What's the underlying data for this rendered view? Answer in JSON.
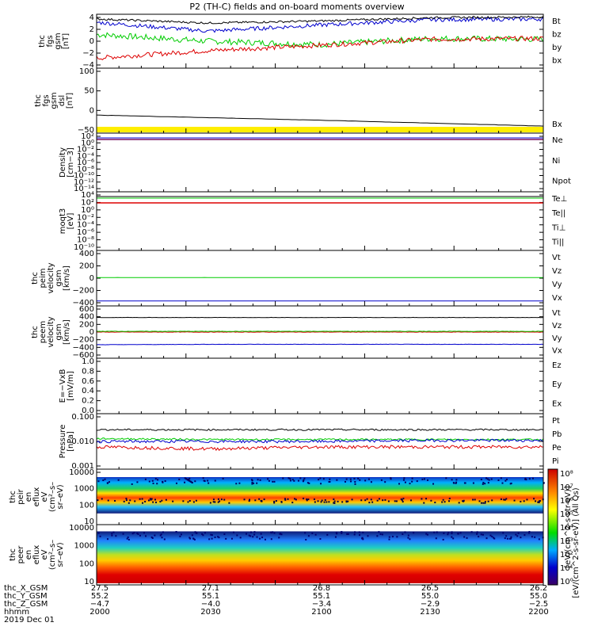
{
  "title": "P2 (TH-C) fields and on-board moments overview",
  "colors": {
    "black": "#000000",
    "red": "#dd0000",
    "green": "#00cc00",
    "blue": "#0000cc",
    "yellow": "#ffee00",
    "purple": "#7a1060"
  },
  "panels": [
    {
      "id": "fgs",
      "ylabel": [
        "thc",
        "fgs",
        "gsm",
        "[nT]"
      ],
      "yticks": [
        "4",
        "2",
        "0",
        "−2",
        "−4"
      ],
      "yrange": [
        -4,
        4
      ],
      "legend": [
        {
          "t": "Bt",
          "c": "black"
        },
        {
          "t": "bz",
          "c": "red"
        },
        {
          "t": "by",
          "c": "green"
        },
        {
          "t": "bx",
          "c": "blue"
        }
      ]
    },
    {
      "id": "fgs_dsl",
      "ylabel": [
        "thc",
        "fgs",
        "gsm",
        "dsl",
        "[nT]"
      ],
      "yticks": [
        "100",
        "50",
        "0",
        "−50"
      ],
      "yrange": [
        -60,
        100
      ],
      "legend": [
        {
          "t": "Bx",
          "c": "black"
        }
      ]
    },
    {
      "id": "density",
      "ylabel": [
        "Density",
        "[cm−3]"
      ],
      "yticks": [
        "10²",
        "10⁰",
        "10⁻²",
        "10⁻⁴",
        "10⁻⁶",
        "10⁻⁸",
        "10⁻¹⁰",
        "10⁻¹²",
        "10⁻¹⁴"
      ],
      "legend": [
        {
          "t": "Ne",
          "c": "red"
        },
        {
          "t": "Ni",
          "c": "black"
        },
        {
          "t": "Npot",
          "c": "blue"
        }
      ]
    },
    {
      "id": "temp",
      "ylabel": [
        "moqt3",
        "[eV]"
      ],
      "yticks": [
        "10⁴",
        "10²",
        "10⁰",
        "10⁻²",
        "10⁻⁴",
        "10⁻⁶",
        "10⁻⁸",
        "10⁻¹⁰"
      ],
      "legend": [
        {
          "t": "Te⊥",
          "c": "red"
        },
        {
          "t": "Te||",
          "c": "black"
        },
        {
          "t": "Ti⊥",
          "c": "blue"
        },
        {
          "t": "Ti||",
          "c": "green"
        }
      ]
    },
    {
      "id": "peim",
      "ylabel": [
        "thc",
        "peim",
        "velocity",
        "gsm",
        "[km/s]"
      ],
      "yticks": [
        "400",
        "200",
        "0",
        "−200",
        "−400"
      ],
      "yrange": [
        -400,
        400
      ],
      "legend": [
        {
          "t": "Vt",
          "c": "black"
        },
        {
          "t": "Vz",
          "c": "red"
        },
        {
          "t": "Vy",
          "c": "green"
        },
        {
          "t": "Vx",
          "c": "blue"
        }
      ]
    },
    {
      "id": "peem",
      "ylabel": [
        "thc",
        "peem",
        "velocity",
        "gsm",
        "[km/s]"
      ],
      "yticks": [
        "600",
        "400",
        "200",
        "0",
        "−200",
        "−400",
        "−600"
      ],
      "yrange": [
        -600,
        600
      ],
      "legend": [
        {
          "t": "Vt",
          "c": "black"
        },
        {
          "t": "Vz",
          "c": "red"
        },
        {
          "t": "Vy",
          "c": "green"
        },
        {
          "t": "Vx",
          "c": "blue"
        }
      ]
    },
    {
      "id": "efield",
      "ylabel": [
        "E=−VxB",
        "[mV/m]"
      ],
      "yticks": [
        "1.0",
        "0.8",
        "0.6",
        "0.4",
        "0.2",
        "0.0"
      ],
      "yrange": [
        0,
        1
      ],
      "legend": [
        {
          "t": "Ez",
          "c": "red"
        },
        {
          "t": "Ey",
          "c": "green"
        },
        {
          "t": "Ex",
          "c": "blue"
        }
      ]
    },
    {
      "id": "pressure",
      "ylabel": [
        "Pressure",
        "[nPa]"
      ],
      "yticks": [
        "0.100",
        "0.010",
        "0.001"
      ],
      "legend": [
        {
          "t": "Pt",
          "c": "black"
        },
        {
          "t": "Pb",
          "c": "red"
        },
        {
          "t": "Pe",
          "c": "green"
        },
        {
          "t": "Pi",
          "c": "blue"
        }
      ]
    },
    {
      "id": "peir",
      "ylabel": [
        "thc",
        "peir",
        "en",
        "eflux",
        "eV",
        "(cm²–s–",
        "sr–eV)"
      ],
      "yticks": [
        "10000",
        "1000",
        "100",
        "10"
      ]
    },
    {
      "id": "peer",
      "ylabel": [
        "thc",
        "peer",
        "en",
        "eflux",
        "eV",
        "(cm²–s–",
        "sr–eV)"
      ],
      "yticks": [
        "10000",
        "1000",
        "100",
        "10"
      ]
    }
  ],
  "colorbar": {
    "ticks": [
      "10⁸",
      "10⁷",
      "10⁶",
      "10⁵",
      "10⁴",
      "10³",
      "10²",
      "10¹",
      "10⁰"
    ],
    "label": "[eV/(cm^2-s-sr-eV)] (All Qs)",
    "label_overlay": "[eV/(cm^2-s-str-eV)]"
  },
  "footer": {
    "rows": [
      {
        "label": "thc_X_GSM",
        "values": [
          "27.5",
          "27.1",
          "26.8",
          "26.5",
          "26.2"
        ]
      },
      {
        "label": "thc_Y_GSM",
        "values": [
          "55.2",
          "55.1",
          "55.1",
          "55.0",
          "55.0"
        ]
      },
      {
        "label": "thc_Z_GSM",
        "values": [
          "−4.7",
          "−4.0",
          "−3.4",
          "−2.9",
          "−2.5"
        ]
      },
      {
        "label": "hhmm",
        "values": [
          "2000",
          "2030",
          "2100",
          "2130",
          "2200"
        ]
      }
    ],
    "date": "2019 Dec 01"
  },
  "chart_data": {
    "type": "line",
    "title": "P2 (TH-C) fields and on-board moments overview",
    "x": [
      "2000",
      "2030",
      "2100",
      "2130",
      "2200"
    ],
    "xlabel": "hhmm (2019 Dec 01)",
    "series": [
      {
        "panel": "fgs",
        "name": "Bt",
        "values": [
          3.3,
          2.7,
          3.0,
          3.5,
          3.6
        ]
      },
      {
        "panel": "fgs",
        "name": "bz",
        "values": [
          -2.5,
          -1.4,
          -0.6,
          0.3,
          0.4
        ]
      },
      {
        "panel": "fgs",
        "name": "by",
        "values": [
          1.0,
          0.0,
          -0.5,
          0.4,
          0.3
        ]
      },
      {
        "panel": "fgs",
        "name": "bx",
        "values": [
          2.8,
          1.5,
          2.4,
          3.2,
          3.3
        ]
      },
      {
        "panel": "fgs_dsl",
        "name": "Bx",
        "values": [
          -28,
          -35,
          -42,
          -50,
          -58
        ]
      },
      {
        "panel": "peim",
        "name": "Vx",
        "values": [
          -370,
          -370,
          -370,
          -370,
          -370
        ]
      },
      {
        "panel": "peim",
        "name": "Vy",
        "values": [
          10,
          10,
          10,
          10,
          10
        ]
      },
      {
        "panel": "peem",
        "name": "Vt",
        "values": [
          380,
          380,
          380,
          380,
          380
        ]
      },
      {
        "panel": "peem",
        "name": "Vy",
        "values": [
          20,
          20,
          20,
          20,
          20
        ]
      },
      {
        "panel": "peem",
        "name": "Vx",
        "values": [
          -330,
          -320,
          -320,
          -320,
          -320
        ]
      },
      {
        "panel": "pressure",
        "name": "Pt",
        "values": [
          0.03,
          0.03,
          0.03,
          0.03,
          0.03
        ]
      },
      {
        "panel": "pressure",
        "name": "Pb",
        "values": [
          0.006,
          0.005,
          0.006,
          0.006,
          0.006
        ]
      },
      {
        "panel": "pressure",
        "name": "Pe",
        "values": [
          0.013,
          0.012,
          0.012,
          0.012,
          0.012
        ]
      },
      {
        "panel": "pressure",
        "name": "Pi",
        "values": [
          0.01,
          0.01,
          0.01,
          0.011,
          0.011
        ]
      }
    ]
  }
}
